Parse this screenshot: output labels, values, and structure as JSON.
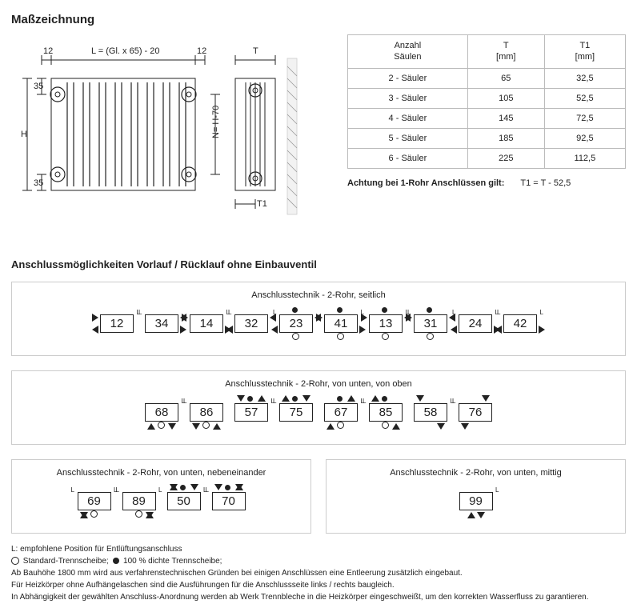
{
  "title": "Maßzeichnung",
  "drawing": {
    "dims": {
      "top12_l": "12",
      "top12_r": "12",
      "L": "L = (Gl. x 65) - 20",
      "h35_t": "35",
      "h35_b": "35",
      "H": "H",
      "N": "N= H-70",
      "T": "T",
      "T1": "T1"
    }
  },
  "table": {
    "headers": [
      "Anzahl\nSäulen",
      "T\n[mm]",
      "T1\n[mm]"
    ],
    "rows": [
      [
        "2 - Säuler",
        "65",
        "32,5"
      ],
      [
        "3 - Säuler",
        "105",
        "52,5"
      ],
      [
        "4 - Säuler",
        "145",
        "72,5"
      ],
      [
        "5 - Säuler",
        "185",
        "92,5"
      ],
      [
        "6 - Säuler",
        "225",
        "112,5"
      ]
    ]
  },
  "note": {
    "label": "Achtung bei 1-Rohr Anschlüssen gilt:",
    "formula": "T1 = T - 52,5"
  },
  "section2_title": "Anschlussmöglichkeiten Vorlauf / Rücklauf ohne Einbauventil",
  "panel1": {
    "title": "Anschlusstechnik - 2-Rohr, seitlich",
    "groups": [
      [
        "12",
        "34"
      ],
      [
        "14",
        "32"
      ],
      [
        "23",
        "41"
      ],
      [
        "13",
        "31"
      ],
      [
        "24",
        "42"
      ]
    ]
  },
  "panel2": {
    "title": "Anschlusstechnik - 2-Rohr, von unten, von oben",
    "groups": [
      [
        "68",
        "86"
      ],
      [
        "57",
        "75"
      ],
      [
        "67",
        "85"
      ],
      [
        "58",
        "76"
      ]
    ]
  },
  "panel3a": {
    "title": "Anschlusstechnik - 2-Rohr, von unten, nebeneinander",
    "groups": [
      [
        "69",
        "89"
      ],
      [
        "50",
        "70"
      ]
    ]
  },
  "panel3b": {
    "title": "Anschlusstechnik - 2-Rohr, von unten, mittig",
    "groups": [
      [
        "99"
      ]
    ]
  },
  "footnotes": [
    "L: empfohlene Position für Entlüftungsanschluss",
    "Standard-Trennscheibe; |FILL| 100 % dichte Trennscheibe;",
    "Ab Bauhöhe 1800 mm wird aus verfahrenstechnischen Gründen bei einigen Anschlüssen eine Entleerung zusätzlich eingebaut.",
    "Für Heizkörper ohne Aufhängelaschen sind die Ausführungen für die Anschlussseite links / rechts baugleich.",
    "In Abhängigkeit der gewählten Anschluss-Anordnung werden ab Werk Trennbleche in die Heizkörper eingeschweißt, um den korrekten Wasserfluss zu garantieren."
  ]
}
